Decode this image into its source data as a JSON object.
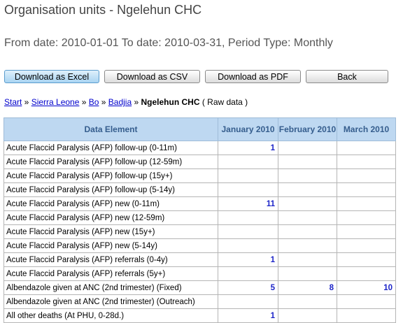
{
  "header": {
    "title": "Organisation units - Ngelehun CHC",
    "subtitle": "From date: 2010-01-01 To date: 2010-03-31, Period Type: Monthly"
  },
  "buttons": {
    "excel": "Download as Excel",
    "csv": "Download as CSV",
    "pdf": "Download as PDF",
    "back": "Back"
  },
  "breadcrumb": {
    "start": "Start",
    "sep": " » ",
    "items": [
      "Sierra Leone",
      "Bo",
      "Badjia"
    ],
    "current": "Ngelehun CHC",
    "suffix": " ( Raw data )"
  },
  "table": {
    "headers": {
      "element": "Data Element",
      "jan": "January 2010",
      "feb": "February 2010",
      "mar": "March 2010"
    },
    "rows": [
      {
        "name": "Acute Flaccid Paralysis (AFP) follow-up (0-11m)",
        "jan": "1",
        "feb": "",
        "mar": ""
      },
      {
        "name": "Acute Flaccid Paralysis (AFP) follow-up (12-59m)",
        "jan": "",
        "feb": "",
        "mar": ""
      },
      {
        "name": "Acute Flaccid Paralysis (AFP) follow-up (15y+)",
        "jan": "",
        "feb": "",
        "mar": ""
      },
      {
        "name": "Acute Flaccid Paralysis (AFP) follow-up (5-14y)",
        "jan": "",
        "feb": "",
        "mar": ""
      },
      {
        "name": "Acute Flaccid Paralysis (AFP) new (0-11m)",
        "jan": "11",
        "feb": "",
        "mar": ""
      },
      {
        "name": "Acute Flaccid Paralysis (AFP) new (12-59m)",
        "jan": "",
        "feb": "",
        "mar": ""
      },
      {
        "name": "Acute Flaccid Paralysis (AFP) new (15y+)",
        "jan": "",
        "feb": "",
        "mar": ""
      },
      {
        "name": "Acute Flaccid Paralysis (AFP) new (5-14y)",
        "jan": "",
        "feb": "",
        "mar": ""
      },
      {
        "name": "Acute Flaccid Paralysis (AFP) referrals (0-4y)",
        "jan": "1",
        "feb": "",
        "mar": ""
      },
      {
        "name": "Acute Flaccid Paralysis (AFP) referrals (5y+)",
        "jan": "",
        "feb": "",
        "mar": ""
      },
      {
        "name": "Albendazole given at ANC (2nd trimester) (Fixed)",
        "jan": "5",
        "feb": "8",
        "mar": "10"
      },
      {
        "name": "Albendazole given at ANC (2nd trimester) (Outreach)",
        "jan": "",
        "feb": "",
        "mar": ""
      },
      {
        "name": "All other deaths (At PHU, 0-28d.)",
        "jan": "1",
        "feb": "",
        "mar": ""
      }
    ]
  }
}
